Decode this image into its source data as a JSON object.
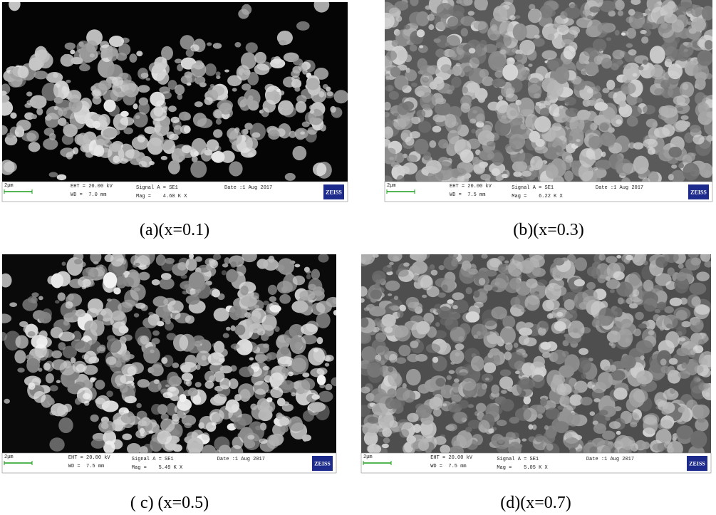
{
  "panels": [
    {
      "caption": "(a)(x=0.1)",
      "scale": "2μm",
      "eht": "EHT = 20.00 kV",
      "wd": "WD =  7.0 mm",
      "signal": "Signal A = SE1",
      "mag": "Mag =    4.60 K X",
      "date": "Date :1 Aug 2017",
      "logo": "ZEISS"
    },
    {
      "caption": "(b)(x=0.3)",
      "scale": "2μm",
      "eht": "EHT = 20.00 kV",
      "wd": "WD =  7.5 mm",
      "signal": "Signal A = SE1",
      "mag": "Mag =    6.22 K X",
      "date": "Date :1 Aug 2017",
      "logo": "ZEISS"
    },
    {
      "caption": "( c) (x=0.5)",
      "scale": "2μm",
      "eht": "EHT = 20.00 kV",
      "wd": "WD =  7.5 mm",
      "signal": "Signal A = SE1",
      "mag": "Mag =    5.49 K X",
      "date": "Date :1 Aug 2017",
      "logo": "ZEISS"
    },
    {
      "caption": "(d)(x=0.7)",
      "scale": "2μm",
      "eht": "EHT = 20.00 kV",
      "wd": "WD =  7.5 mm",
      "signal": "Signal A = SE1",
      "mag": "Mag =    5.05 K X",
      "date": "Date :1 Aug 2017",
      "logo": "ZEISS"
    }
  ]
}
